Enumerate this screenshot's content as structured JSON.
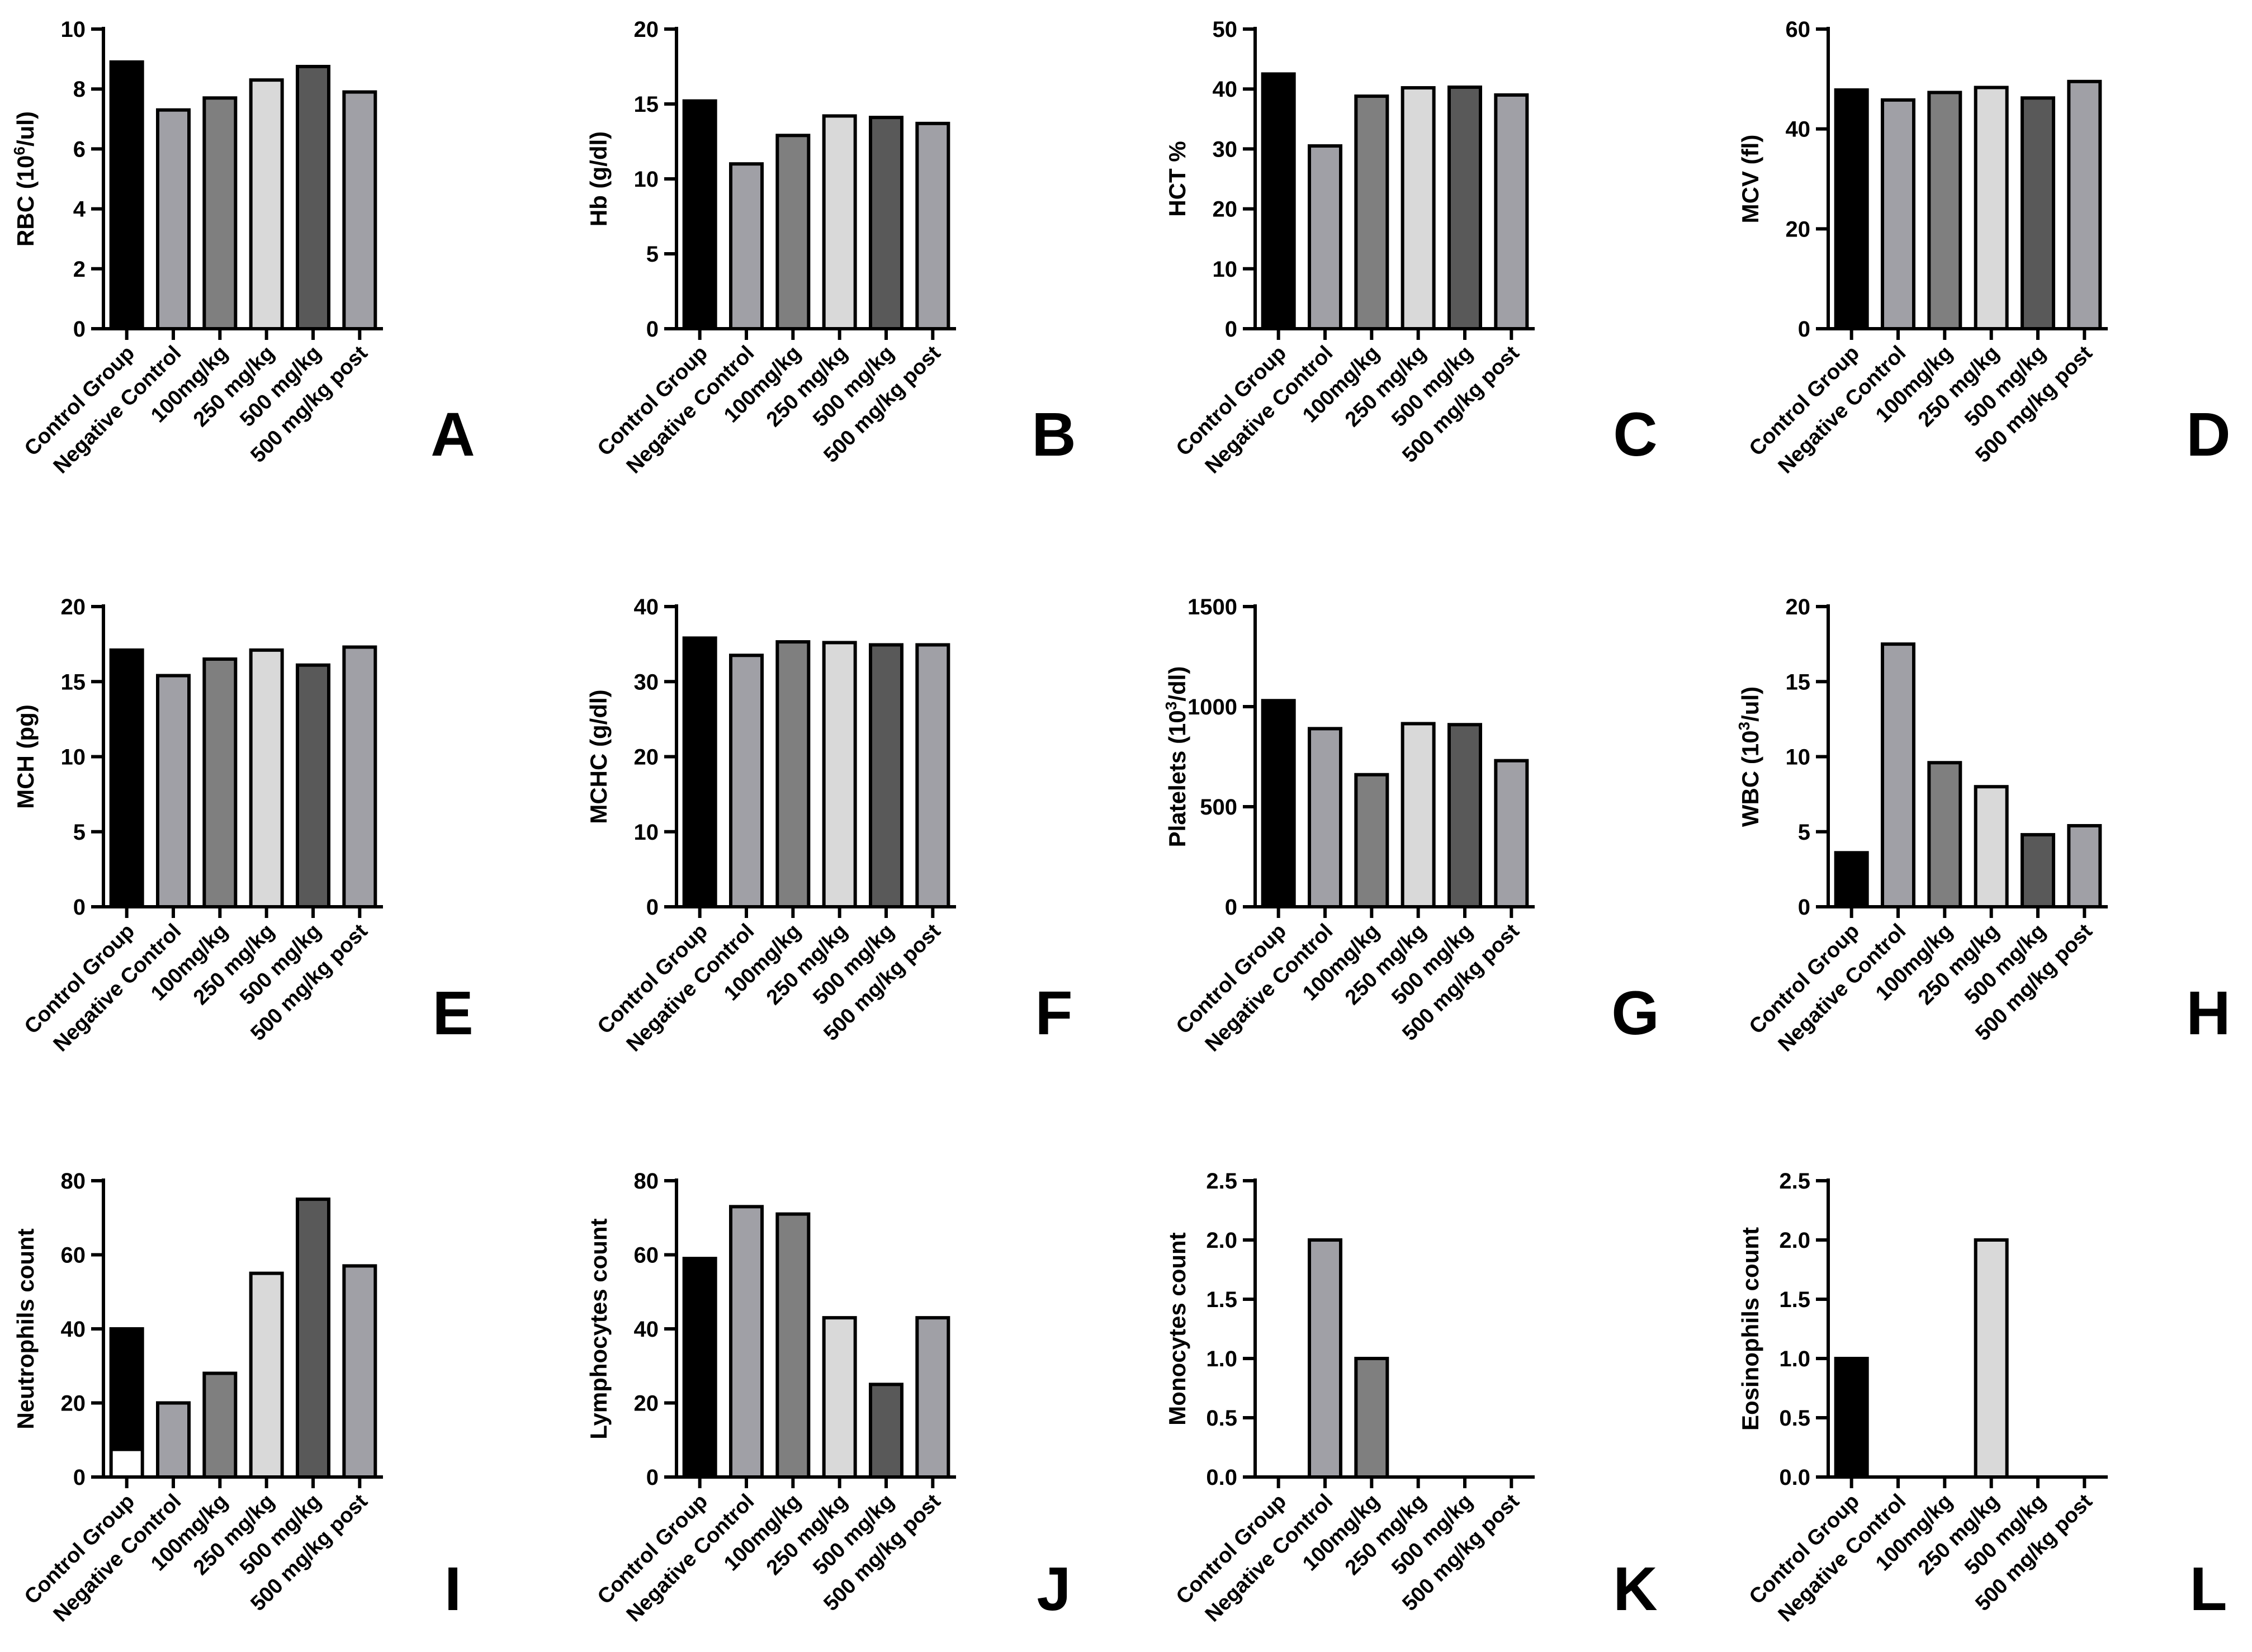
{
  "palette": [
    "#000000",
    "#a0a0a6",
    "#7f7f7f",
    "#d9d9d9",
    "#595959",
    "#a0a0a6"
  ],
  "chart_data": [
    {
      "type": "bar",
      "letter": "A",
      "ylabel": {
        "base": "RBC (10",
        "sup": "6",
        "tail": "/ul)"
      },
      "categories": [
        "Control Group",
        "Negative Control",
        "100mg/kg",
        "250 mg/kg",
        "500 mg/kg",
        "500 mg/kg post"
      ],
      "values": [
        8.9,
        7.3,
        7.7,
        8.3,
        8.75,
        7.9
      ],
      "ylim": [
        0,
        10
      ],
      "ticks": [
        "0",
        "2",
        "4",
        "6",
        "8",
        "10"
      ]
    },
    {
      "type": "bar",
      "letter": "B",
      "ylabel": {
        "base": "Hb (g/dl)"
      },
      "categories": [
        "Control Group",
        "Negative Control",
        "100mg/kg",
        "250 mg/kg",
        "500 mg/kg",
        "500 mg/kg post"
      ],
      "values": [
        15.2,
        11.0,
        12.9,
        14.2,
        14.1,
        13.7
      ],
      "ylim": [
        0,
        20
      ],
      "ticks": [
        "0",
        "5",
        "10",
        "15",
        "20"
      ]
    },
    {
      "type": "bar",
      "letter": "C",
      "ylabel": {
        "base": "HCT %"
      },
      "categories": [
        "Control Group",
        "Negative Control",
        "100mg/kg",
        "250 mg/kg",
        "500 mg/kg",
        "500 mg/kg post"
      ],
      "values": [
        42.5,
        30.5,
        38.8,
        40.2,
        40.3,
        39.0
      ],
      "ylim": [
        0,
        50
      ],
      "ticks": [
        "0",
        "10",
        "20",
        "30",
        "40",
        "50"
      ]
    },
    {
      "type": "bar",
      "letter": "D",
      "ylabel": {
        "base": "MCV (fl)"
      },
      "categories": [
        "Control Group",
        "Negative Control",
        "100mg/kg",
        "250 mg/kg",
        "500 mg/kg",
        "500 mg/kg post"
      ],
      "values": [
        47.8,
        45.8,
        47.3,
        48.3,
        46.2,
        49.5
      ],
      "ylim": [
        0,
        60
      ],
      "ticks": [
        "0",
        "20",
        "40",
        "60"
      ]
    },
    {
      "type": "bar",
      "letter": "E",
      "ylabel": {
        "base": "MCH (pg)"
      },
      "categories": [
        "Control Group",
        "Negative Control",
        "100mg/kg",
        "250 mg/kg",
        "500 mg/kg",
        "500 mg/kg post"
      ],
      "values": [
        17.1,
        15.4,
        16.5,
        17.1,
        16.1,
        17.3
      ],
      "ylim": [
        0,
        20
      ],
      "ticks": [
        "0",
        "5",
        "10",
        "15",
        "20"
      ]
    },
    {
      "type": "bar",
      "letter": "F",
      "ylabel": {
        "base": "MCHC (g/dl)"
      },
      "categories": [
        "Control Group",
        "Negative Control",
        "100mg/kg",
        "250 mg/kg",
        "500 mg/kg",
        "500 mg/kg post"
      ],
      "values": [
        35.8,
        33.5,
        35.3,
        35.2,
        34.9,
        34.9
      ],
      "ylim": [
        0,
        40
      ],
      "ticks": [
        "0",
        "10",
        "20",
        "30",
        "40"
      ]
    },
    {
      "type": "bar",
      "letter": "G",
      "ylabel": {
        "base": "Platelets (10",
        "sup": "3",
        "tail": "/dl)"
      },
      "categories": [
        "Control Group",
        "Negative Control",
        "100mg/kg",
        "250 mg/kg",
        "500 mg/kg",
        "500 mg/kg post"
      ],
      "values": [
        1030,
        890,
        660,
        915,
        910,
        730
      ],
      "ylim": [
        0,
        1500
      ],
      "ticks": [
        "0",
        "500",
        "1000",
        "1500"
      ]
    },
    {
      "type": "bar",
      "letter": "H",
      "ylabel": {
        "base": "WBC (10",
        "sup": "3",
        "tail": "/ul)"
      },
      "categories": [
        "Control Group",
        "Negative Control",
        "100mg/kg",
        "250 mg/kg",
        "500 mg/kg",
        "500 mg/kg post"
      ],
      "values": [
        3.6,
        17.5,
        9.6,
        8.0,
        4.8,
        5.4
      ],
      "ylim": [
        0,
        20
      ],
      "ticks": [
        "0",
        "5",
        "10",
        "15",
        "20"
      ]
    },
    {
      "type": "bar",
      "letter": "I",
      "ylabel": {
        "base": "Neutrophils count"
      },
      "categories": [
        "Control Group",
        "Negative Control",
        "100mg/kg",
        "250 mg/kg",
        "500 mg/kg",
        "500 mg/kg post"
      ],
      "values": [
        40,
        20,
        28,
        55,
        75,
        57
      ],
      "overlay": {
        "index": 0,
        "value": 7
      },
      "ylim": [
        0,
        80
      ],
      "ticks": [
        "0",
        "20",
        "40",
        "60",
        "80"
      ]
    },
    {
      "type": "bar",
      "letter": "J",
      "ylabel": {
        "base": "Lymphocytes count"
      },
      "categories": [
        "Control Group",
        "Negative Control",
        "100mg/kg",
        "250 mg/kg",
        "500 mg/kg",
        "500 mg/kg post"
      ],
      "values": [
        59,
        73,
        71,
        43,
        25,
        43
      ],
      "ylim": [
        0,
        80
      ],
      "ticks": [
        "0",
        "20",
        "40",
        "60",
        "80"
      ]
    },
    {
      "type": "bar",
      "letter": "K",
      "ylabel": {
        "base": "Monocytes count"
      },
      "categories": [
        "Control Group",
        "Negative Control",
        "100mg/kg",
        "250 mg/kg",
        "500 mg/kg",
        "500 mg/kg post"
      ],
      "values": [
        0,
        2.0,
        1.0,
        0,
        0,
        0
      ],
      "ylim": [
        0,
        2.5
      ],
      "ticks": [
        "0.0",
        "0.5",
        "1.0",
        "1.5",
        "2.0",
        "2.5"
      ]
    },
    {
      "type": "bar",
      "letter": "L",
      "ylabel": {
        "base": "Eosinophils count"
      },
      "categories": [
        "Control Group",
        "Negative Control",
        "100mg/kg",
        "250 mg/kg",
        "500 mg/kg",
        "500 mg/kg post"
      ],
      "values": [
        1.0,
        0,
        0,
        2.0,
        0,
        0
      ],
      "ylim": [
        0,
        2.5
      ],
      "ticks": [
        "0.0",
        "0.5",
        "1.0",
        "1.5",
        "2.0",
        "2.5"
      ]
    }
  ]
}
